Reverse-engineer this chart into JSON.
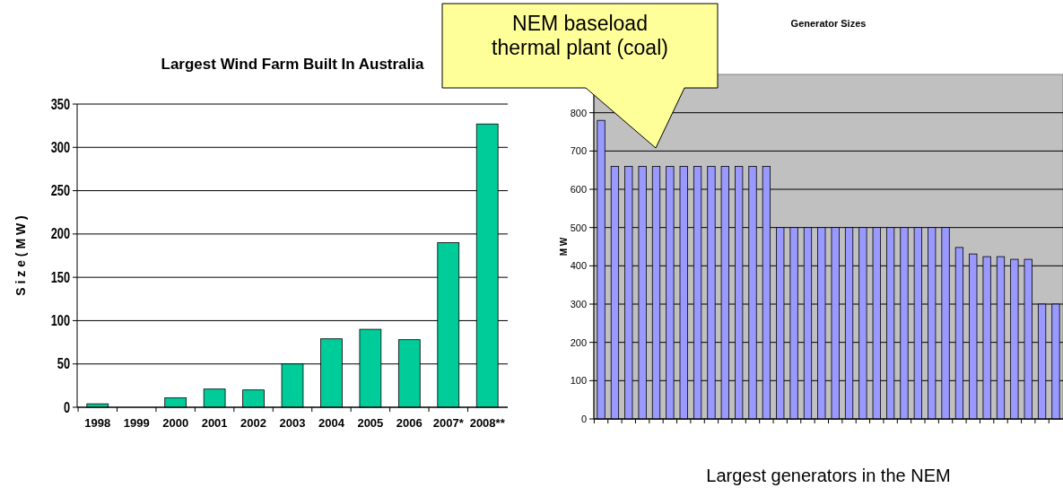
{
  "chart_data": [
    {
      "type": "bar",
      "title": "Largest Wind Farm Built In Australia",
      "ylabel": "S i z e ( M W )",
      "categories": [
        "1998",
        "1999",
        "2000",
        "2001",
        "2002",
        "2003",
        "2004",
        "2005",
        "2006",
        "2007*",
        "2008**"
      ],
      "values": [
        4,
        0,
        11,
        21,
        20,
        50,
        79,
        90,
        78,
        190,
        327
      ],
      "color": "#00cc99",
      "ylim": [
        0,
        350
      ],
      "yticks": [
        0,
        50,
        100,
        150,
        200,
        250,
        300,
        350
      ],
      "grid": "y"
    },
    {
      "type": "bar",
      "title": "Generator Sizes",
      "ylabel": "M W",
      "xlabel": "Largest  generators in the NEM",
      "annotations": [
        "NEM baseload thermal plant (coal)"
      ],
      "categories": [
        null,
        null,
        null,
        null,
        null,
        null,
        null,
        null,
        null,
        null,
        null,
        null,
        null,
        null,
        null,
        null,
        null,
        null,
        null,
        null,
        null,
        null,
        null,
        null,
        null,
        null,
        null,
        null,
        null,
        null,
        null,
        null,
        null,
        null
      ],
      "values": [
        780,
        660,
        660,
        660,
        660,
        660,
        660,
        660,
        660,
        660,
        660,
        660,
        660,
        500,
        500,
        500,
        500,
        500,
        500,
        500,
        500,
        500,
        500,
        500,
        500,
        500,
        448,
        431,
        424,
        424,
        417,
        417,
        300,
        300
      ],
      "color": "#9999ff",
      "ylim": [
        0,
        900
      ],
      "yticks": [
        0,
        100,
        200,
        300,
        400,
        500,
        600,
        700,
        800
      ],
      "grid": "y"
    }
  ]
}
